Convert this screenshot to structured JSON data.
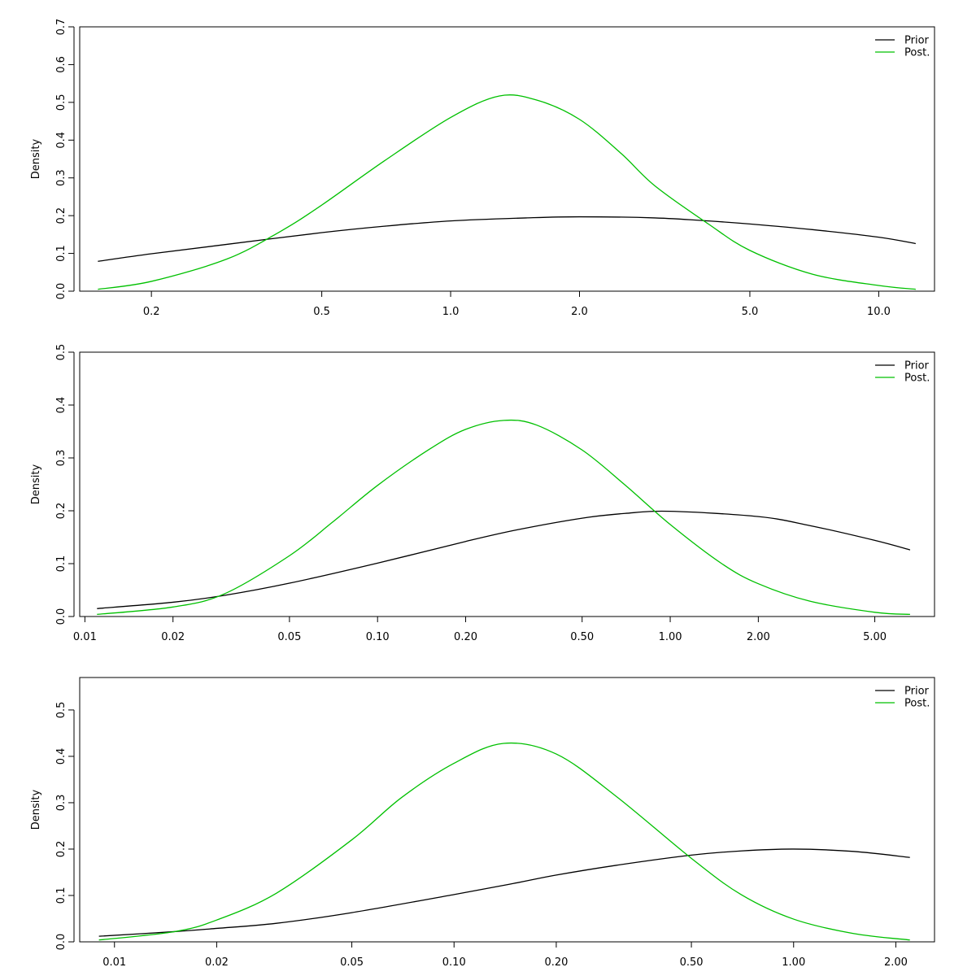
{
  "chart_data": [
    {
      "type": "line",
      "title": "",
      "xlabel": "",
      "ylabel": "Density",
      "xscale": "log",
      "xlim": [
        0.136,
        13.5
      ],
      "ylim": [
        0,
        0.7
      ],
      "x_ticks": [
        "0.2",
        "0.5",
        "1.0",
        "2.0",
        "5.0",
        "10.0"
      ],
      "y_ticks": [
        "0.0",
        "0.1",
        "0.2",
        "0.3",
        "0.4",
        "0.5",
        "0.6",
        "0.7"
      ],
      "grid": false,
      "legend": {
        "position": "top-right",
        "entries": [
          "Prior",
          "Post."
        ]
      },
      "series": [
        {
          "name": "Prior",
          "color": "#000000",
          "x": [
            0.15,
            0.2,
            0.3,
            0.5,
            0.7,
            1.0,
            1.5,
            2.0,
            3.0,
            4.0,
            5.0,
            7.0,
            10.0,
            12.2
          ],
          "y": [
            0.079,
            0.099,
            0.124,
            0.155,
            0.172,
            0.186,
            0.194,
            0.197,
            0.194,
            0.186,
            0.178,
            0.163,
            0.143,
            0.126
          ]
        },
        {
          "name": "Post.",
          "color": "#00c000",
          "x": [
            0.15,
            0.2,
            0.3,
            0.4,
            0.5,
            0.7,
            1.0,
            1.3,
            1.6,
            2.0,
            2.5,
            3.0,
            4.0,
            5.0,
            7.0,
            10.0,
            12.2
          ],
          "y": [
            0.005,
            0.026,
            0.085,
            0.158,
            0.228,
            0.345,
            0.46,
            0.517,
            0.505,
            0.455,
            0.365,
            0.279,
            0.178,
            0.108,
            0.045,
            0.015,
            0.005
          ]
        }
      ]
    },
    {
      "type": "line",
      "title": "",
      "xlabel": "",
      "ylabel": "Density",
      "xscale": "log",
      "xlim": [
        0.0096,
        8.0
      ],
      "ylim": [
        0,
        0.5
      ],
      "x_ticks": [
        "0.01",
        "0.02",
        "0.05",
        "0.10",
        "0.20",
        "0.50",
        "1.00",
        "2.00",
        "5.00"
      ],
      "y_ticks": [
        "0.0",
        "0.1",
        "0.2",
        "0.3",
        "0.4",
        "0.5"
      ],
      "grid": false,
      "legend": {
        "position": "top-right",
        "entries": [
          "Prior",
          "Post."
        ]
      },
      "series": [
        {
          "name": "Prior",
          "color": "#000000",
          "x": [
            0.011,
            0.02,
            0.03,
            0.05,
            0.1,
            0.2,
            0.3,
            0.5,
            0.7,
            1.0,
            2.0,
            3.0,
            5.0,
            6.6
          ],
          "y": [
            0.015,
            0.027,
            0.04,
            0.063,
            0.101,
            0.142,
            0.164,
            0.186,
            0.195,
            0.199,
            0.189,
            0.172,
            0.144,
            0.126
          ]
        },
        {
          "name": "Post.",
          "color": "#00c000",
          "x": [
            0.011,
            0.02,
            0.03,
            0.05,
            0.07,
            0.1,
            0.15,
            0.2,
            0.27,
            0.35,
            0.5,
            0.7,
            1.0,
            1.5,
            2.0,
            3.0,
            5.0,
            6.6
          ],
          "y": [
            0.004,
            0.018,
            0.043,
            0.115,
            0.178,
            0.248,
            0.316,
            0.354,
            0.371,
            0.362,
            0.315,
            0.249,
            0.174,
            0.1,
            0.062,
            0.029,
            0.008,
            0.004
          ]
        }
      ]
    },
    {
      "type": "line",
      "title": "",
      "xlabel": "",
      "ylabel": "Density",
      "xscale": "log",
      "xlim": [
        0.0079,
        2.6
      ],
      "ylim": [
        0,
        0.57
      ],
      "x_ticks": [
        "0.01",
        "0.02",
        "0.05",
        "0.10",
        "0.20",
        "0.50",
        "1.00",
        "2.00"
      ],
      "y_ticks": [
        "0.0",
        "0.1",
        "0.2",
        "0.3",
        "0.4",
        "0.5"
      ],
      "grid": false,
      "legend": {
        "position": "top-right",
        "entries": [
          "Prior",
          "Post."
        ]
      },
      "series": [
        {
          "name": "Prior",
          "color": "#000000",
          "x": [
            0.009,
            0.015,
            0.02,
            0.03,
            0.05,
            0.1,
            0.15,
            0.2,
            0.3,
            0.5,
            0.7,
            1.0,
            1.5,
            2.2
          ],
          "y": [
            0.012,
            0.022,
            0.029,
            0.04,
            0.063,
            0.102,
            0.126,
            0.144,
            0.165,
            0.187,
            0.196,
            0.2,
            0.195,
            0.182
          ]
        },
        {
          "name": "Post.",
          "color": "#00c000",
          "x": [
            0.009,
            0.015,
            0.02,
            0.03,
            0.05,
            0.07,
            0.1,
            0.14,
            0.2,
            0.3,
            0.5,
            0.7,
            1.0,
            1.5,
            2.2
          ],
          "y": [
            0.004,
            0.022,
            0.047,
            0.105,
            0.22,
            0.311,
            0.385,
            0.428,
            0.405,
            0.314,
            0.18,
            0.102,
            0.049,
            0.018,
            0.004
          ]
        }
      ]
    }
  ]
}
